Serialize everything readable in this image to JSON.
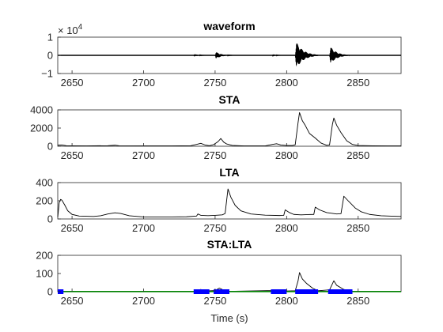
{
  "chart_data": {
    "type": "line",
    "xlabel": "Time (s)",
    "xlim": [
      2640,
      2880
    ],
    "xticks": [
      2650,
      2700,
      2750,
      2800,
      2850
    ],
    "panels": [
      {
        "id": "waveform",
        "title": "waveform",
        "ylim": [
          -1,
          1
        ],
        "yticks": [
          -1,
          0,
          1
        ],
        "ytick_labels": [
          "−1",
          "0",
          "1"
        ],
        "exponent_base": "× 10",
        "exponent_power": "4",
        "series": [
          {
            "color": "#000000",
            "bursts": [
              {
                "start": 2735,
                "end": 2745,
                "amp": 0.08
              },
              {
                "start": 2750,
                "end": 2762,
                "amp": 0.22
              },
              {
                "start": 2790,
                "end": 2797,
                "amp": 0.08
              },
              {
                "start": 2806,
                "end": 2822,
                "amp": 0.85
              },
              {
                "start": 2830,
                "end": 2844,
                "amp": 0.55
              }
            ]
          }
        ]
      },
      {
        "id": "sta",
        "title": "STA",
        "ylim": [
          0,
          4000
        ],
        "yticks": [
          0,
          2000,
          4000
        ],
        "ytick_labels": [
          "0",
          "2000",
          "4000"
        ],
        "series": [
          {
            "color": "#000000",
            "points": [
              [
                2640,
                120
              ],
              [
                2643,
                140
              ],
              [
                2646,
                60
              ],
              [
                2650,
                50
              ],
              [
                2660,
                40
              ],
              [
                2675,
                60
              ],
              [
                2680,
                110
              ],
              [
                2683,
                50
              ],
              [
                2700,
                40
              ],
              [
                2720,
                40
              ],
              [
                2733,
                60
              ],
              [
                2737,
                200
              ],
              [
                2740,
                320
              ],
              [
                2743,
                140
              ],
              [
                2746,
                60
              ],
              [
                2749,
                180
              ],
              [
                2752,
                500
              ],
              [
                2754,
                850
              ],
              [
                2756,
                450
              ],
              [
                2758,
                260
              ],
              [
                2762,
                90
              ],
              [
                2770,
                40
              ],
              [
                2785,
                40
              ],
              [
                2790,
                200
              ],
              [
                2793,
                280
              ],
              [
                2796,
                140
              ],
              [
                2800,
                80
              ],
              [
                2804,
                80
              ],
              [
                2806,
                160
              ],
              [
                2808,
                2600
              ],
              [
                2809,
                3700
              ],
              [
                2811,
                2800
              ],
              [
                2813,
                2300
              ],
              [
                2816,
                1400
              ],
              [
                2820,
                900
              ],
              [
                2824,
                350
              ],
              [
                2828,
                100
              ],
              [
                2830,
                140
              ],
              [
                2832,
                2400
              ],
              [
                2833,
                3100
              ],
              [
                2835,
                2300
              ],
              [
                2838,
                1500
              ],
              [
                2842,
                600
              ],
              [
                2846,
                200
              ],
              [
                2850,
                80
              ],
              [
                2860,
                50
              ],
              [
                2870,
                40
              ],
              [
                2880,
                40
              ]
            ]
          }
        ]
      },
      {
        "id": "lta",
        "title": "LTA",
        "ylim": [
          0,
          400
        ],
        "yticks": [
          0,
          200,
          400
        ],
        "ytick_labels": [
          "0",
          "200",
          "400"
        ],
        "series": [
          {
            "color": "#000000",
            "points": [
              [
                2640,
                20
              ],
              [
                2641,
                180
              ],
              [
                2642,
                215
              ],
              [
                2643,
                205
              ],
              [
                2645,
                150
              ],
              [
                2647,
                90
              ],
              [
                2650,
                50
              ],
              [
                2655,
                32
              ],
              [
                2660,
                30
              ],
              [
                2665,
                28
              ],
              [
                2670,
                35
              ],
              [
                2675,
                55
              ],
              [
                2680,
                68
              ],
              [
                2684,
                60
              ],
              [
                2690,
                35
              ],
              [
                2700,
                22
              ],
              [
                2710,
                22
              ],
              [
                2720,
                22
              ],
              [
                2730,
                24
              ],
              [
                2737,
                32
              ],
              [
                2738,
                55
              ],
              [
                2740,
                40
              ],
              [
                2745,
                36
              ],
              [
                2750,
                40
              ],
              [
                2755,
                45
              ],
              [
                2757,
                60
              ],
              [
                2759,
                330
              ],
              [
                2761,
                240
              ],
              [
                2764,
                150
              ],
              [
                2768,
                90
              ],
              [
                2775,
                55
              ],
              [
                2785,
                42
              ],
              [
                2795,
                38
              ],
              [
                2798,
                40
              ],
              [
                2799,
                100
              ],
              [
                2802,
                70
              ],
              [
                2805,
                50
              ],
              [
                2810,
                45
              ],
              [
                2815,
                48
              ],
              [
                2819,
                50
              ],
              [
                2820,
                130
              ],
              [
                2823,
                100
              ],
              [
                2828,
                70
              ],
              [
                2835,
                55
              ],
              [
                2838,
                58
              ],
              [
                2840,
                250
              ],
              [
                2843,
                200
              ],
              [
                2848,
                120
              ],
              [
                2852,
                80
              ],
              [
                2858,
                50
              ],
              [
                2866,
                35
              ],
              [
                2875,
                30
              ],
              [
                2880,
                28
              ]
            ]
          }
        ]
      },
      {
        "id": "stalta",
        "title": "STA:LTA",
        "ylim": [
          0,
          200
        ],
        "yticks": [
          0,
          100,
          200
        ],
        "ytick_labels": [
          "0",
          "100",
          "200"
        ],
        "series": [
          {
            "color": "#000000",
            "points": [
              [
                2640,
                0
              ],
              [
                2735,
                2
              ],
              [
                2740,
                12
              ],
              [
                2744,
                4
              ],
              [
                2750,
                6
              ],
              [
                2753,
                20
              ],
              [
                2756,
                8
              ],
              [
                2760,
                2
              ],
              [
                2790,
                6
              ],
              [
                2793,
                10
              ],
              [
                2797,
                3
              ],
              [
                2806,
                5
              ],
              [
                2808,
                60
              ],
              [
                2809,
                105
              ],
              [
                2811,
                70
              ],
              [
                2814,
                45
              ],
              [
                2818,
                20
              ],
              [
                2822,
                5
              ],
              [
                2830,
                10
              ],
              [
                2833,
                60
              ],
              [
                2835,
                35
              ],
              [
                2840,
                12
              ],
              [
                2846,
                3
              ],
              [
                2880,
                0
              ]
            ]
          },
          {
            "color": "#008000",
            "points": [
              [
                2640,
                1
              ],
              [
                2880,
                1
              ]
            ]
          },
          {
            "color": "#0000ff",
            "segments": [
              [
                2640,
                2644
              ],
              [
                2735,
                2746
              ],
              [
                2749,
                2760
              ],
              [
                2789,
                2800
              ],
              [
                2806,
                2822
              ],
              [
                2829,
                2846
              ]
            ]
          }
        ]
      }
    ]
  }
}
